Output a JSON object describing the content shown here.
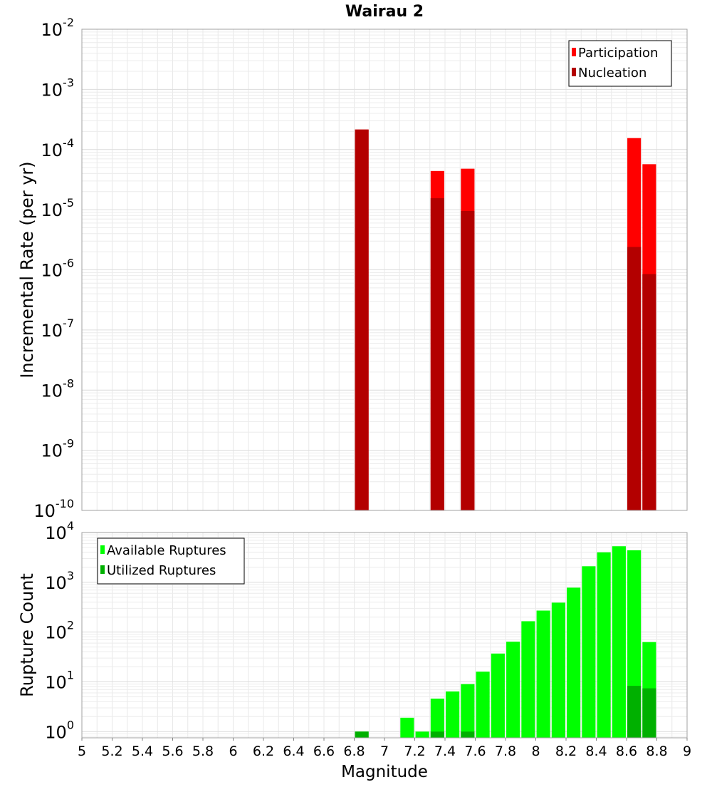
{
  "chart_data": [
    {
      "type": "bar",
      "title": "Wairau 2",
      "xlabel": "",
      "ylabel": "Incremental Rate (per yr)",
      "xlim": [
        5,
        9
      ],
      "ylim": [
        1e-10,
        0.01
      ],
      "yscale": "log",
      "bar_width": 0.09,
      "grid": true,
      "legend_position": "top-right",
      "series": [
        {
          "name": "Participation",
          "color": "#ff0000",
          "x": [
            6.85,
            7.35,
            7.55,
            8.65,
            8.75
          ],
          "values": [
            0.000215,
            4.4e-05,
            4.8e-05,
            0.000155,
            5.7e-05
          ]
        },
        {
          "name": "Nucleation",
          "color": "#b30000",
          "x": [
            6.85,
            7.35,
            7.55,
            8.65,
            8.75
          ],
          "values": [
            0.000215,
            1.55e-05,
            9.5e-06,
            2.4e-06,
            8.5e-07
          ]
        }
      ],
      "yticks": [
        {
          "base": "10",
          "exp": "-2"
        },
        {
          "base": "10",
          "exp": "-3"
        },
        {
          "base": "10",
          "exp": "-4"
        },
        {
          "base": "10",
          "exp": "-5"
        },
        {
          "base": "10",
          "exp": "-6"
        },
        {
          "base": "10",
          "exp": "-7"
        },
        {
          "base": "10",
          "exp": "-8"
        },
        {
          "base": "10",
          "exp": "-9"
        },
        {
          "base": "10",
          "exp": "-10"
        }
      ]
    },
    {
      "type": "bar",
      "title": "",
      "xlabel": "Magnitude",
      "ylabel": "Rupture Count",
      "xlim": [
        5,
        9
      ],
      "ylim": [
        0.75,
        10000
      ],
      "yscale": "log",
      "bar_width": 0.09,
      "grid": true,
      "legend_position": "top-left",
      "series": [
        {
          "name": "Available Ruptures",
          "color": "#00ff00",
          "x": [
            6.85,
            7.15,
            7.25,
            7.35,
            7.45,
            7.55,
            7.65,
            7.75,
            7.85,
            7.95,
            8.05,
            8.15,
            8.25,
            8.35,
            8.45,
            8.55,
            8.65,
            8.75
          ],
          "values": [
            1,
            1.9,
            1,
            4.6,
            6.4,
            9,
            16,
            37,
            64,
            165,
            270,
            390,
            780,
            2100,
            4000,
            5300,
            4400,
            63
          ]
        },
        {
          "name": "Utilized Ruptures",
          "color": "#00b000",
          "x": [
            6.85,
            7.35,
            7.55,
            8.65,
            8.75
          ],
          "values": [
            1,
            1,
            1,
            8.3,
            7.4
          ]
        }
      ],
      "xticks": [
        "5",
        "5.2",
        "5.4",
        "5.6",
        "5.8",
        "6",
        "6.2",
        "6.4",
        "6.6",
        "6.8",
        "7",
        "7.2",
        "7.4",
        "7.6",
        "7.8",
        "8",
        "8.2",
        "8.4",
        "8.6",
        "8.8",
        "9"
      ],
      "yticks": [
        {
          "base": "10",
          "exp": "4"
        },
        {
          "base": "10",
          "exp": "3"
        },
        {
          "base": "10",
          "exp": "2"
        },
        {
          "base": "10",
          "exp": "1"
        },
        {
          "base": "10",
          "exp": "0"
        }
      ]
    }
  ]
}
